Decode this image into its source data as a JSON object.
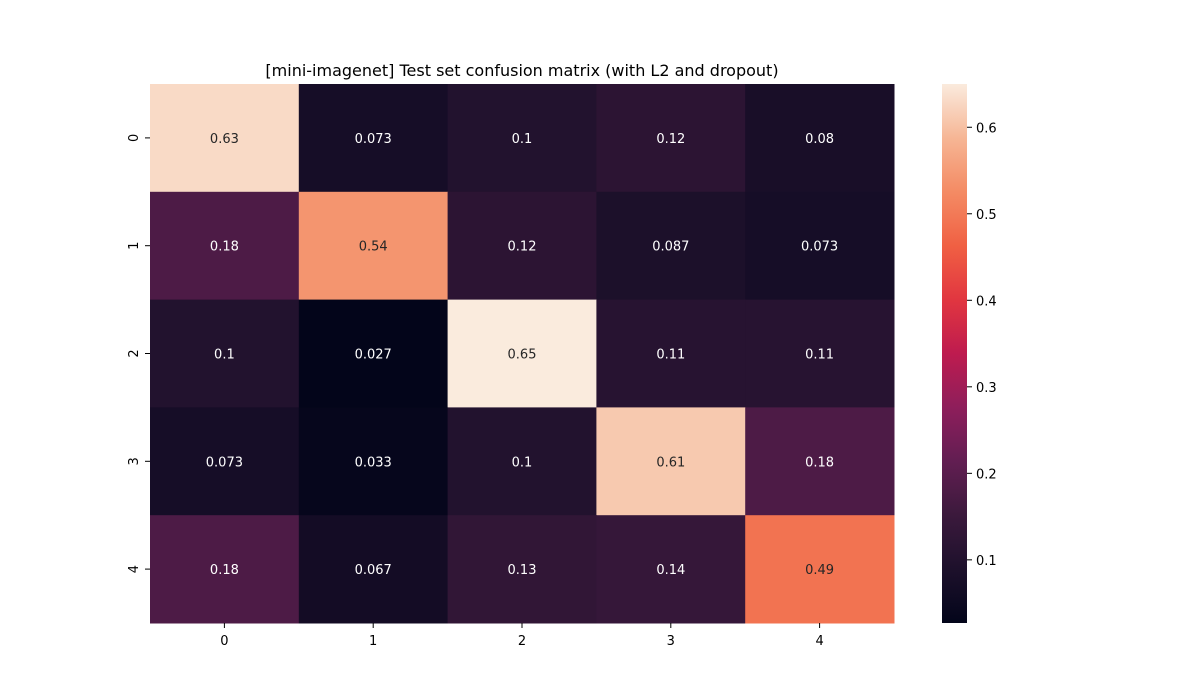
{
  "chart_data": {
    "type": "heatmap",
    "title": "[mini-imagenet] Test set confusion matrix (with L2 and dropout)",
    "xlabel": "",
    "ylabel": "",
    "x_categories": [
      "0",
      "1",
      "2",
      "3",
      "4"
    ],
    "y_categories": [
      "0",
      "1",
      "2",
      "3",
      "4"
    ],
    "values": [
      [
        0.63,
        0.073,
        0.1,
        0.12,
        0.08
      ],
      [
        0.18,
        0.54,
        0.12,
        0.087,
        0.073
      ],
      [
        0.1,
        0.027,
        0.65,
        0.11,
        0.11
      ],
      [
        0.073,
        0.033,
        0.1,
        0.61,
        0.18
      ],
      [
        0.18,
        0.067,
        0.13,
        0.14,
        0.49
      ]
    ],
    "value_labels": [
      [
        "0.63",
        "0.073",
        "0.1",
        "0.12",
        "0.08"
      ],
      [
        "0.18",
        "0.54",
        "0.12",
        "0.087",
        "0.073"
      ],
      [
        "0.1",
        "0.027",
        "0.65",
        "0.11",
        "0.11"
      ],
      [
        "0.073",
        "0.033",
        "0.1",
        "0.61",
        "0.18"
      ],
      [
        "0.18",
        "0.067",
        "0.13",
        "0.14",
        "0.49"
      ]
    ],
    "colormap": "rocket",
    "color_range": [
      0.027,
      0.65
    ],
    "colorbar": {
      "ticks": [
        0.1,
        0.2,
        0.3,
        0.4,
        0.5,
        0.6
      ],
      "tick_labels": [
        "0.1",
        "0.2",
        "0.3",
        "0.4",
        "0.5",
        "0.6"
      ],
      "placement": "right"
    },
    "grid": false
  }
}
